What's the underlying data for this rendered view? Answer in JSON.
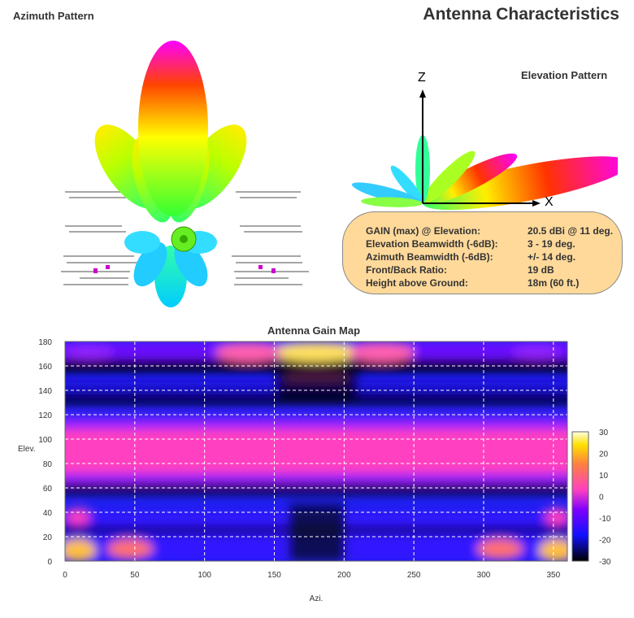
{
  "header": {
    "title": "Antenna Characteristics",
    "azimuth_title": "Azimuth Pattern",
    "elevation_title": "Elevation Pattern",
    "z_axis": "Z",
    "x_axis": "X"
  },
  "specs": [
    {
      "label": "GAIN (max) @ Elevation:",
      "value": "20.5 dBi @ 11 deg."
    },
    {
      "label": "Elevation Beamwidth (-6dB):",
      "value": "3 - 19 deg."
    },
    {
      "label": "Azimuth Beamwidth (-6dB):",
      "value": "+/- 14 deg."
    },
    {
      "label": "Front/Back Ratio:",
      "value": "19 dB"
    },
    {
      "label": "Height above Ground:",
      "value": "18m (60 ft.)"
    }
  ],
  "colors": {
    "lobe_gradient": [
      "#00e5ff",
      "#33ff33",
      "#ffff00",
      "#ff3300",
      "#ff00ff"
    ],
    "colorbar": [
      "#000000",
      "#1010ff",
      "#8000ff",
      "#ff40c0",
      "#ff8040",
      "#ffe000",
      "#ffffe0"
    ]
  },
  "chart_data": {
    "type": "heatmap",
    "title": "Antenna Gain Map",
    "xlabel": "Azi.",
    "ylabel": "Elev.",
    "x_range": [
      0,
      360
    ],
    "y_range": [
      0,
      180
    ],
    "x_ticks": [
      "0",
      "50",
      "100",
      "150",
      "200",
      "250",
      "300",
      "350"
    ],
    "y_ticks": [
      "0",
      "20",
      "40",
      "60",
      "80",
      "100",
      "120",
      "140",
      "160",
      "180"
    ],
    "colorbar": {
      "range": [
        -30,
        30
      ],
      "ticks": [
        "30",
        "20",
        "10",
        "0",
        "-10",
        "-20",
        "-30"
      ]
    },
    "grid": true,
    "description_values": {
      "max_gain_band_elevation": [
        80,
        100
      ],
      "null_elevations": [
        58,
        122
      ],
      "secondary_band_elevation": [
        140,
        180
      ],
      "low_band_elevation": [
        0,
        40
      ]
    }
  }
}
